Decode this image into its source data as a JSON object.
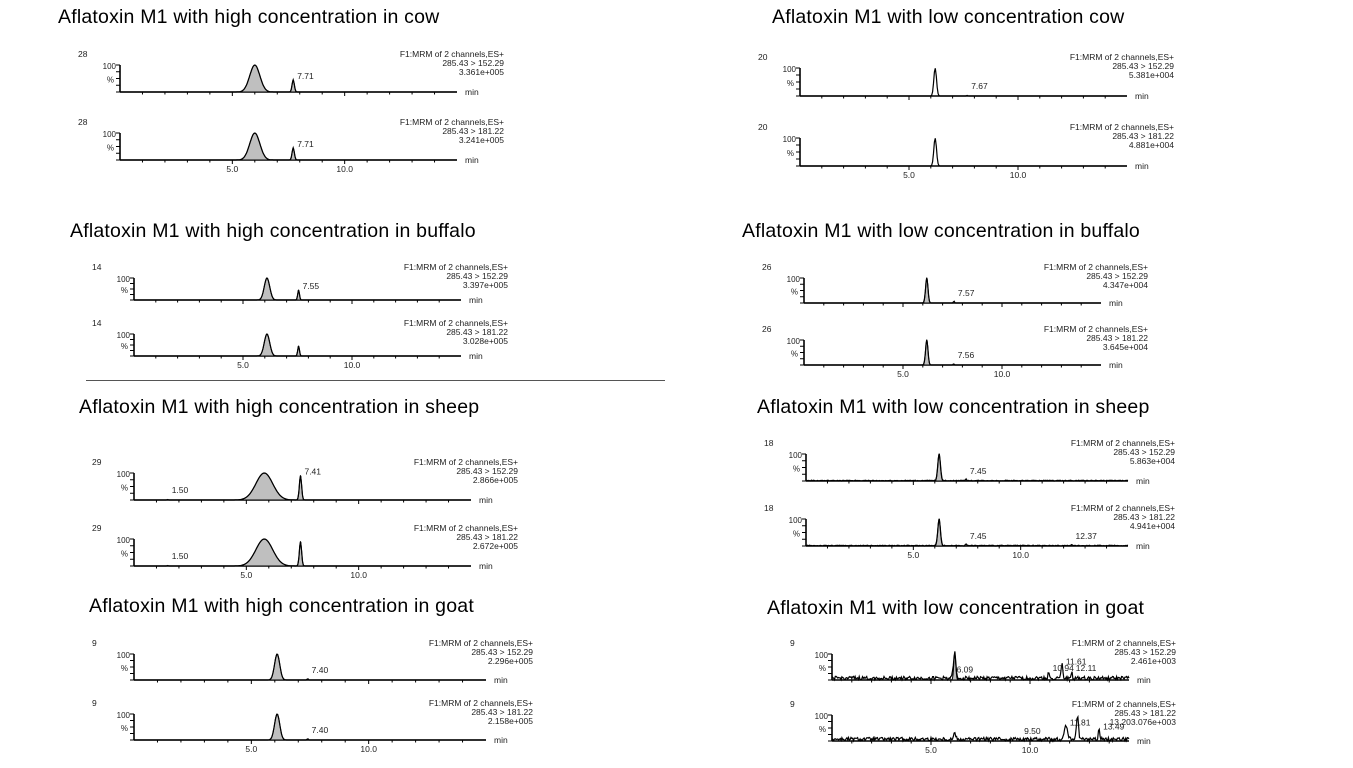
{
  "chart_data": [
    {
      "type": "line",
      "title": "Aflatoxin M1 with high concentration in cow",
      "x_unit": "min",
      "x_ticks": [
        "5.0",
        "10.0"
      ],
      "xlim": [
        0,
        15
      ],
      "traces": [
        {
          "label": "28",
          "channel": "F1:MRM of 2 channels,ES+",
          "transition": "285.43 > 152.29",
          "intensity": "3.361e+005",
          "y_axis": [
            "100",
            "%"
          ],
          "peaks": [
            {
              "rt": 6.0,
              "height": 100,
              "width": 0.45,
              "filled": true
            },
            {
              "rt": 7.71,
              "height": 45,
              "width": 0.1,
              "filled": true,
              "label": "7.71"
            }
          ],
          "noise": 0
        },
        {
          "label": "28",
          "channel": "F1:MRM of 2 channels,ES+",
          "transition": "285.43 > 181.22",
          "intensity": "3.241e+005",
          "y_axis": [
            "100",
            "%"
          ],
          "peaks": [
            {
              "rt": 6.0,
              "height": 100,
              "width": 0.45,
              "filled": true
            },
            {
              "rt": 7.71,
              "height": 45,
              "width": 0.1,
              "filled": true,
              "label": "7.71"
            }
          ],
          "noise": 0
        }
      ]
    },
    {
      "type": "line",
      "title": "Aflatoxin M1 with low concentration cow",
      "x_unit": "min",
      "x_ticks": [
        "5.0",
        "10.0"
      ],
      "xlim": [
        0,
        15
      ],
      "traces": [
        {
          "label": "20",
          "channel": "F1:MRM of 2 channels,ES+",
          "transition": "285.43 > 152.29",
          "intensity": "5.381e+004",
          "y_axis": [
            "100",
            "%"
          ],
          "peaks": [
            {
              "rt": 6.2,
              "height": 100,
              "width": 0.12,
              "filled": false
            },
            {
              "rt": 7.67,
              "height": 2,
              "width": 0.05,
              "filled": false,
              "label": "7.67"
            }
          ],
          "noise": 0
        },
        {
          "label": "20",
          "channel": "F1:MRM of 2 channels,ES+",
          "transition": "285.43 > 181.22",
          "intensity": "4.881e+004",
          "y_axis": [
            "100",
            "%"
          ],
          "peaks": [
            {
              "rt": 6.2,
              "height": 100,
              "width": 0.12,
              "filled": false
            }
          ],
          "noise": 0
        }
      ]
    },
    {
      "type": "line",
      "title": "Aflatoxin M1 with high concentration in buffalo",
      "x_unit": "min",
      "x_ticks": [
        "5.0",
        "10.0"
      ],
      "xlim": [
        0,
        15
      ],
      "traces": [
        {
          "label": "14",
          "channel": "F1:MRM of 2 channels,ES+",
          "transition": "285.43 > 152.29",
          "intensity": "3.397e+005",
          "y_axis": [
            "100",
            "%"
          ],
          "peaks": [
            {
              "rt": 6.1,
              "height": 100,
              "width": 0.25,
              "filled": true
            },
            {
              "rt": 7.55,
              "height": 45,
              "width": 0.08,
              "filled": true,
              "label": "7.55"
            }
          ],
          "noise": 0
        },
        {
          "label": "14",
          "channel": "F1:MRM of 2 channels,ES+",
          "transition": "285.43 > 181.22",
          "intensity": "3.028e+005",
          "y_axis": [
            "100",
            "%"
          ],
          "peaks": [
            {
              "rt": 6.1,
              "height": 100,
              "width": 0.25,
              "filled": true
            },
            {
              "rt": 7.55,
              "height": 45,
              "width": 0.08,
              "filled": true
            }
          ],
          "noise": 0
        }
      ]
    },
    {
      "type": "line",
      "title": "Aflatoxin M1 with low concentration in buffalo",
      "x_unit": "min",
      "x_ticks": [
        "5.0",
        "10.0"
      ],
      "xlim": [
        0,
        15
      ],
      "traces": [
        {
          "label": "26",
          "channel": "F1:MRM of 2 channels,ES+",
          "transition": "285.43 > 152.29",
          "intensity": "4.347e+004",
          "y_axis": [
            "100",
            "%"
          ],
          "peaks": [
            {
              "rt": 6.2,
              "height": 100,
              "width": 0.12,
              "filled": true
            },
            {
              "rt": 7.57,
              "height": 8,
              "width": 0.05,
              "filled": false,
              "label": "7.57"
            }
          ],
          "noise": 0
        },
        {
          "label": "26",
          "channel": "F1:MRM of 2 channels,ES+",
          "transition": "285.43 > 181.22",
          "intensity": "3.645e+004",
          "y_axis": [
            "100",
            "%"
          ],
          "peaks": [
            {
              "rt": 6.2,
              "height": 100,
              "width": 0.12,
              "filled": true
            },
            {
              "rt": 7.56,
              "height": 5,
              "width": 0.05,
              "filled": false,
              "label": "7.56"
            }
          ],
          "noise": 0
        }
      ]
    },
    {
      "type": "line",
      "title": "Aflatoxin M1 with high concentration in sheep",
      "x_unit": "min",
      "x_ticks": [
        "5.0",
        "10.0"
      ],
      "xlim": [
        0,
        15
      ],
      "traces": [
        {
          "label": "29",
          "channel": "F1:MRM of 2 channels,ES+",
          "transition": "285.43 > 152.29",
          "intensity": "2.866e+005",
          "y_axis": [
            "100",
            "%"
          ],
          "peaks": [
            {
              "rt": 5.8,
              "height": 100,
              "width": 0.75,
              "filled": true
            },
            {
              "rt": 7.41,
              "height": 90,
              "width": 0.1,
              "filled": true,
              "label": "7.41"
            },
            {
              "rt": 1.5,
              "height": 2,
              "width": 0.05,
              "filled": false,
              "label": "1.50"
            }
          ],
          "noise": 0
        },
        {
          "label": "29",
          "channel": "F1:MRM of 2 channels,ES+",
          "transition": "285.43 > 181.22",
          "intensity": "2.672e+005",
          "y_axis": [
            "100",
            "%"
          ],
          "peaks": [
            {
              "rt": 5.8,
              "height": 100,
              "width": 0.75,
              "filled": true
            },
            {
              "rt": 7.41,
              "height": 90,
              "width": 0.1,
              "filled": true
            },
            {
              "rt": 1.5,
              "height": 2,
              "width": 0.05,
              "filled": false,
              "label": "1.50"
            }
          ],
          "noise": 0
        }
      ]
    },
    {
      "type": "line",
      "title": "Aflatoxin M1 with low concentration in sheep",
      "x_unit": "min",
      "x_ticks": [
        "5.0",
        "10.0"
      ],
      "xlim": [
        0,
        15
      ],
      "traces": [
        {
          "label": "18",
          "channel": "F1:MRM of 2 channels,ES+",
          "transition": "285.43 > 152.29",
          "intensity": "5.863e+004",
          "y_axis": [
            "100",
            "%"
          ],
          "peaks": [
            {
              "rt": 6.2,
              "height": 100,
              "width": 0.12,
              "filled": true
            },
            {
              "rt": 7.45,
              "height": 8,
              "width": 0.05,
              "filled": false,
              "label": "7.45"
            }
          ],
          "noise": 3
        },
        {
          "label": "18",
          "channel": "F1:MRM of 2 channels,ES+",
          "transition": "285.43 > 181.22",
          "intensity": "4.941e+004",
          "y_axis": [
            "100",
            "%"
          ],
          "peaks": [
            {
              "rt": 6.2,
              "height": 100,
              "width": 0.12,
              "filled": true
            },
            {
              "rt": 7.45,
              "height": 8,
              "width": 0.05,
              "filled": false,
              "label": "7.45"
            },
            {
              "rt": 12.37,
              "height": 4,
              "width": 0.05,
              "filled": false,
              "label": "12.37"
            }
          ],
          "noise": 3
        }
      ]
    },
    {
      "type": "line",
      "title": "Aflatoxin M1 with high concentration in goat",
      "x_unit": "min",
      "x_ticks": [
        "5.0",
        "10.0"
      ],
      "xlim": [
        0,
        15
      ],
      "traces": [
        {
          "label": "9",
          "channel": "F1:MRM of 2 channels,ES+",
          "transition": "285.43 > 152.29",
          "intensity": "2.296e+005",
          "y_axis": [
            "100",
            "%"
          ],
          "peaks": [
            {
              "rt": 6.1,
              "height": 100,
              "width": 0.22,
              "filled": true
            },
            {
              "rt": 7.4,
              "height": 6,
              "width": 0.05,
              "filled": false,
              "label": "7.40"
            }
          ],
          "noise": 0
        },
        {
          "label": "9",
          "channel": "F1:MRM of 2 channels,ES+",
          "transition": "285.43 > 181.22",
          "intensity": "2.158e+005",
          "y_axis": [
            "100",
            "%"
          ],
          "peaks": [
            {
              "rt": 6.1,
              "height": 100,
              "width": 0.22,
              "filled": true
            },
            {
              "rt": 7.4,
              "height": 6,
              "width": 0.05,
              "filled": false,
              "label": "7.40"
            }
          ],
          "noise": 0
        }
      ]
    },
    {
      "type": "line",
      "title": "Aflatoxin M1 with low concentration in goat",
      "x_unit": "min",
      "x_ticks": [
        "5.0",
        "10.0"
      ],
      "xlim": [
        0,
        15
      ],
      "traces": [
        {
          "label": "9",
          "channel": "F1:MRM of 2 channels,ES+",
          "transition": "285.43 > 152.29",
          "intensity": "2.461e+003",
          "y_axis": [
            "100",
            "%"
          ],
          "peaks": [
            {
              "rt": 6.2,
              "height": 100,
              "width": 0.1,
              "filled": true
            },
            {
              "rt": 6.09,
              "height": 25,
              "width": 0.05,
              "filled": false,
              "label": "6.09"
            },
            {
              "rt": 10.94,
              "height": 30,
              "width": 0.05,
              "filled": false,
              "label": "10.94"
            },
            {
              "rt": 11.61,
              "height": 55,
              "width": 0.08,
              "filled": false,
              "label": "11.61"
            },
            {
              "rt": 12.11,
              "height": 30,
              "width": 0.05,
              "filled": false,
              "label": "12.11"
            }
          ],
          "noise": 14
        },
        {
          "label": "9",
          "channel": "F1:MRM of 2 channels,ES+",
          "transition": "285.43 > 181.22",
          "intensity": "13.203.076e+003",
          "y_axis": [
            "100",
            "%"
          ],
          "peaks": [
            {
              "rt": 6.2,
              "height": 25,
              "width": 0.1,
              "filled": false
            },
            {
              "rt": 9.5,
              "height": 10,
              "width": 0.05,
              "filled": false,
              "label": "9.50"
            },
            {
              "rt": 11.81,
              "height": 55,
              "width": 0.15,
              "filled": false,
              "label": "11.81"
            },
            {
              "rt": 12.4,
              "height": 90,
              "width": 0.1,
              "filled": false
            },
            {
              "rt": 13.49,
              "height": 40,
              "width": 0.08,
              "filled": false,
              "label": "13.49"
            }
          ],
          "noise": 14
        }
      ]
    }
  ]
}
